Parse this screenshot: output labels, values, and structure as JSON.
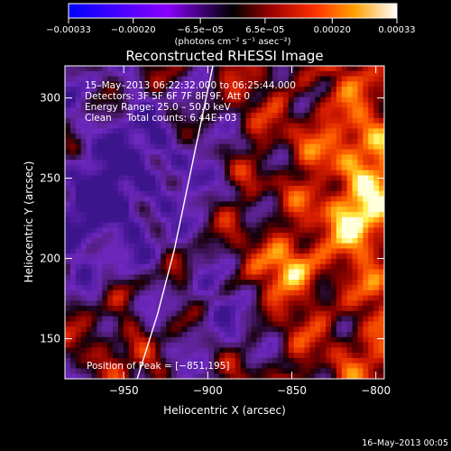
{
  "chart_data": {
    "type": "heatmap",
    "title": "Reconstructed RHESSI Image",
    "xlabel": "Heliocentric X (arcsec)",
    "ylabel": "Heliocentric Y (arcsec)",
    "xlim": [
      -985,
      -795
    ],
    "ylim": [
      125,
      320
    ],
    "x_ticks": [
      -950,
      -900,
      -850,
      -800
    ],
    "y_ticks": [
      150,
      200,
      250,
      300
    ],
    "x_tick_labels": [
      "−950",
      "−900",
      "−850",
      "−800"
    ],
    "y_tick_labels": [
      "150",
      "200",
      "250",
      "300"
    ],
    "colorbar": {
      "min": -0.00033,
      "max": 0.00033,
      "ticks": [
        -0.00033,
        -0.0002,
        -6.5e-05,
        6.5e-05,
        0.0002,
        0.00033
      ],
      "tick_labels": [
        "−0.00033",
        "−0.00020",
        "−6.5e−05",
        "6.5e−05",
        "0.00020",
        "0.00033"
      ],
      "units_label": "(photons cm⁻² s⁻¹ asec⁻²)"
    },
    "annotations": [
      "15–May–2013 06:22:32.000 to 06:25:44.000",
      "Detectors: 3F 5F 6F 7F 8F 9F, Att 0",
      "Energy Range: 25.0 – 50.0 keV",
      "Clean     Total counts: 6.44E+03"
    ],
    "peak_label": "Position of Peak = [−851,195]",
    "peak": [
      -851,
      195
    ],
    "limb_curve": [
      [
        -942,
        125
      ],
      [
        -930,
        165
      ],
      [
        -920,
        205
      ],
      [
        -912,
        245
      ],
      [
        -904,
        285
      ],
      [
        -897,
        320
      ]
    ],
    "footer": "16–May–2013 00:05",
    "grid": false
  }
}
